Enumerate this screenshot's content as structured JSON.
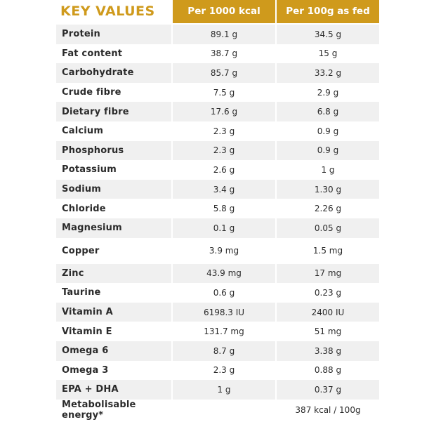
{
  "header": {
    "title": "KEY VALUES",
    "col1": "Per 1000 kcal",
    "col2": "Per 100g as fed"
  },
  "rows": [
    {
      "name": "Protein",
      "v1": "89.1 g",
      "v2": "34.5 g"
    },
    {
      "name": "Fat content",
      "v1": "38.7 g",
      "v2": "15 g"
    },
    {
      "name": "Carbohydrate",
      "v1": "85.7 g",
      "v2": "33.2 g"
    },
    {
      "name": "Crude fibre",
      "v1": "7.5 g",
      "v2": "2.9 g"
    },
    {
      "name": "Dietary fibre",
      "v1": "17.6 g",
      "v2": "6.8 g"
    },
    {
      "name": "Calcium",
      "v1": "2.3 g",
      "v2": "0.9 g"
    },
    {
      "name": "Phosphorus",
      "v1": "2.3 g",
      "v2": "0.9 g"
    },
    {
      "name": "Potassium",
      "v1": "2.6 g",
      "v2": "1 g"
    },
    {
      "name": "Sodium",
      "v1": "3.4 g",
      "v2": "1.30 g"
    },
    {
      "name": "Chloride",
      "v1": "5.8 g",
      "v2": "2.26 g"
    },
    {
      "name": "Magnesium",
      "v1": "0.1 g",
      "v2": "0.05 g"
    },
    {
      "name": "Copper",
      "v1": "3.9 mg",
      "v2": "1.5 mg"
    },
    {
      "name": "Zinc",
      "v1": "43.9 mg",
      "v2": "17 mg"
    },
    {
      "name": "Taurine",
      "v1": "0.6 g",
      "v2": "0.23 g"
    },
    {
      "name": "Vitamin A",
      "v1": "6198.3 IU",
      "v2": "2400 IU"
    },
    {
      "name": "Vitamin E",
      "v1": "131.7 mg",
      "v2": "51 mg"
    },
    {
      "name": "Omega 6",
      "v1": "8.7 g",
      "v2": "3.38 g"
    },
    {
      "name": "Omega 3",
      "v1": "2.3 g",
      "v2": "0.88 g"
    },
    {
      "name": "EPA + DHA",
      "v1": "1 g",
      "v2": "0.37 g"
    },
    {
      "name": "Metabolisable energy*",
      "v1": "",
      "v2": "387 kcal / 100g"
    }
  ],
  "colors": {
    "accent": "#cf9a1c",
    "row_shade": "#f0f0f0",
    "text": "#2b2b2b"
  }
}
